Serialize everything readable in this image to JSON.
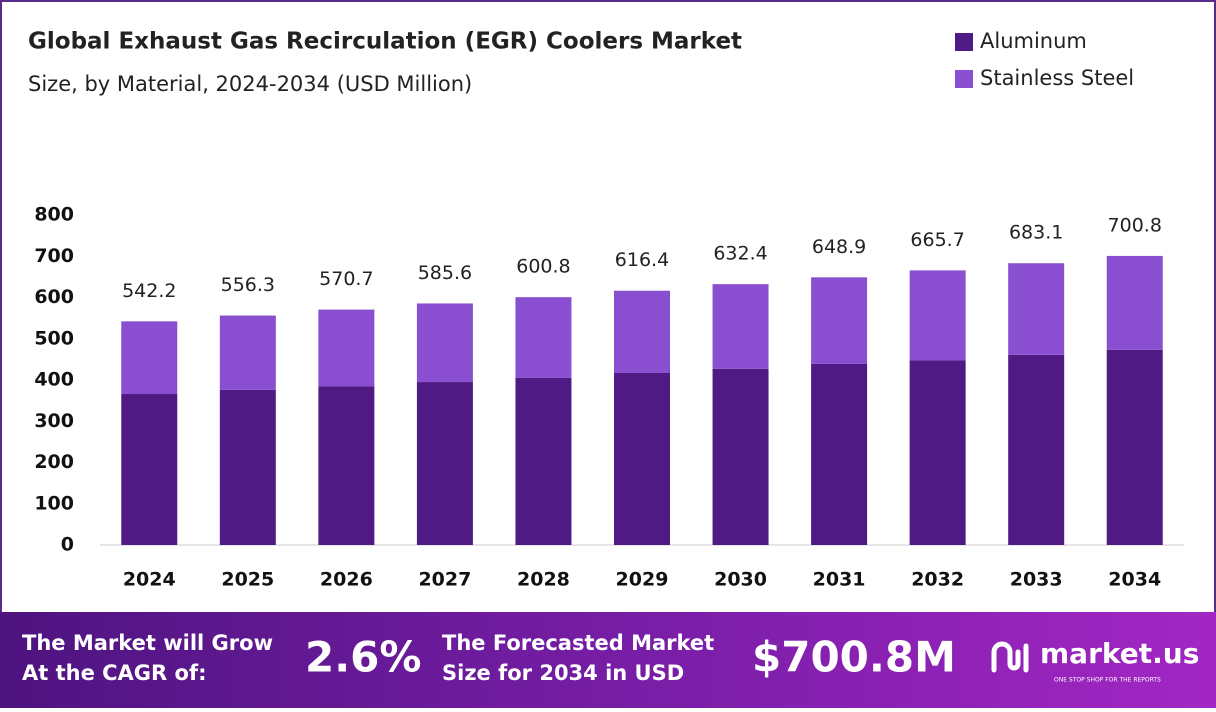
{
  "chart_data": {
    "type": "stacked_bar",
    "title": "Global  Exhaust Gas Recirculation (EGR) Coolers Market",
    "subtitle": "Size, by Material, 2024-2034 (USD Million)",
    "categories": [
      "2024",
      "2025",
      "2026",
      "2027",
      "2028",
      "2029",
      "2030",
      "2031",
      "2032",
      "2033",
      "2034"
    ],
    "series": [
      {
        "name": "Aluminum",
        "color": "#4f1a83",
        "values": [
          366,
          376,
          385,
          395,
          405,
          417,
          427,
          439,
          448,
          461,
          473
        ]
      },
      {
        "name": "Stainless Steel",
        "color": "#8a4fd0",
        "values": [
          176.2,
          180.3,
          185.7,
          190.6,
          195.8,
          199.4,
          205.4,
          209.9,
          217.7,
          222.1,
          227.8
        ]
      }
    ],
    "totals": [
      542.2,
      556.3,
      570.7,
      585.6,
      600.8,
      616.4,
      632.4,
      648.9,
      665.7,
      683.1,
      700.8
    ],
    "ylim": [
      0,
      800
    ],
    "yticks": [
      0,
      100,
      200,
      300,
      400,
      500,
      600,
      700,
      800
    ],
    "grid": false,
    "legend": "top-right"
  },
  "footer": {
    "cagr_label": [
      "The Market will Grow",
      "At the CAGR of:"
    ],
    "cagr": "2.6%",
    "forecast_label": [
      "The Forecasted Market",
      "Size for 2034 in USD"
    ],
    "forecast": "$700.8M",
    "brand": "market.us",
    "tagline": "ONE STOP SHOP FOR THE REPORTS"
  }
}
